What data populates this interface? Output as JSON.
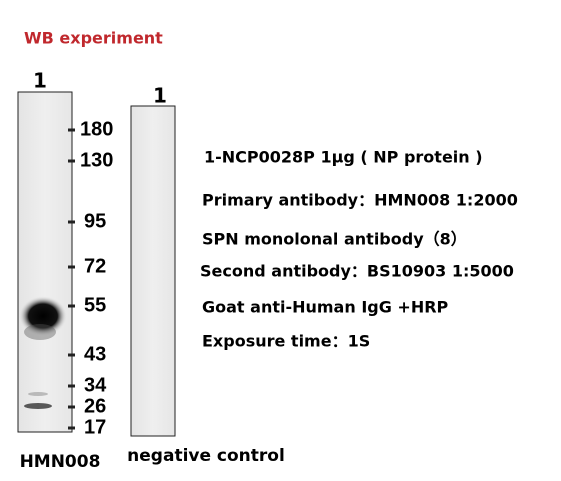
{
  "title": "WB experiment",
  "blot": {
    "lanes": [
      {
        "label": "1",
        "name": "HMN008"
      },
      {
        "label": "1",
        "name": "negative control"
      }
    ],
    "markers": [
      180,
      130,
      95,
      72,
      55,
      43,
      34,
      26,
      17
    ]
  },
  "info": [
    "1-NCP0028P 1μg ( NP protein )",
    "Primary antibody：HMN008 1:2000",
    "SPN monolonal antibody（8）",
    "Second antibody：BS10903 1:5000",
    "Goat anti-Human IgG +HRP",
    "Exposure time：1S"
  ]
}
